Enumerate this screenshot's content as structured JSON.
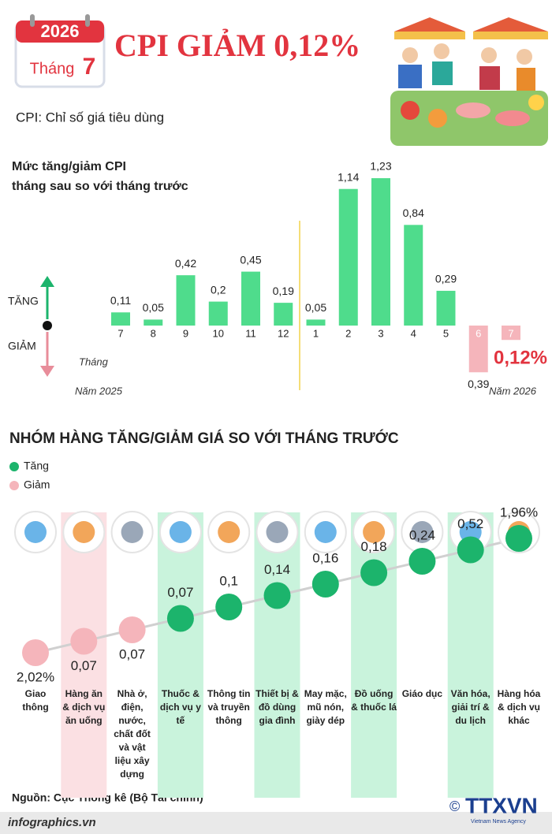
{
  "header": {
    "year": "2026",
    "month_label": "Tháng",
    "month": "7",
    "title": "CPI GIẢM 0,12%",
    "subtitle": "CPI: Chỉ số giá tiêu dùng"
  },
  "chart_data": [
    {
      "type": "bar",
      "title": [
        "Mức tăng/giảm CPI",
        "tháng sau so với tháng trước"
      ],
      "categories": [
        "7",
        "8",
        "9",
        "10",
        "11",
        "12",
        "1",
        "2",
        "3",
        "4",
        "5",
        "6",
        "7"
      ],
      "values": [
        0.11,
        0.05,
        0.42,
        0.2,
        0.45,
        0.19,
        0.05,
        1.14,
        1.23,
        0.84,
        0.29,
        -0.39,
        -0.12
      ],
      "value_labels": [
        "0,11",
        "0,05",
        "0,42",
        "0,2",
        "0,45",
        "0,19",
        "0,05",
        "1,14",
        "1,23",
        "0,84",
        "0,29",
        "0,39",
        "0,12%"
      ],
      "x_label": "Tháng",
      "up_label": "TĂNG",
      "down_label": "GIẢM",
      "year_labels": [
        "Năm 2025",
        "Năm 2026"
      ],
      "color_up": "#4fdc8c",
      "color_down": "#f5b5bb"
    },
    {
      "type": "dot",
      "title": "NHÓM HÀNG TĂNG/GIẢM GIÁ SO VỚI THÁNG TRƯỚC",
      "legend": [
        {
          "name": "Tăng",
          "color": "#1cb46c"
        },
        {
          "name": "Giảm",
          "color": "#f5b5bb"
        }
      ],
      "categories": [
        "Giao thông",
        "Hàng ăn & dịch vụ ăn uống",
        "Nhà ở, điện, nước, chất đốt và vật liệu xây dựng",
        "Thuốc & dịch vụ y tế",
        "Thông tin và truyền thông",
        "Thiết bị & đồ dùng gia đình",
        "May mặc, mũ nón, giày dép",
        "Đồ uống & thuốc lá",
        "Giáo dục",
        "Văn hóa, giải trí & du lịch",
        "Hàng hóa & dịch vụ khác"
      ],
      "values": [
        -2.02,
        -0.07,
        -0.07,
        0.07,
        0.1,
        0.14,
        0.16,
        0.18,
        0.24,
        0.52,
        1.96
      ],
      "value_labels": [
        "2,02%",
        "0,07",
        "0,07",
        "0,07",
        "0,1",
        "0,14",
        "0,16",
        "0,18",
        "0,24",
        "0,52",
        "1,96%"
      ]
    }
  ],
  "footer": {
    "source": "Nguồn: Cục Thống kê (Bộ Tài chính)",
    "site": "infographics.vn",
    "agency": "TTXVN",
    "agency_en": "Vietnam News Agency"
  }
}
